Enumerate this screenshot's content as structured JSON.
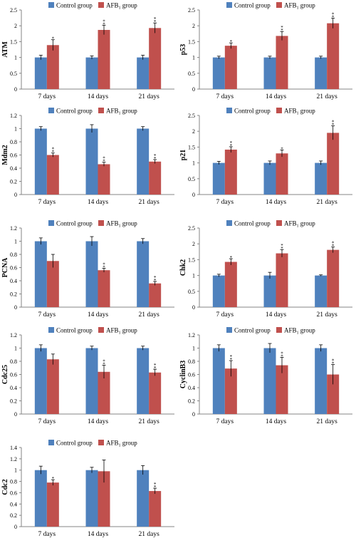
{
  "legend": {
    "control_label": "Control group",
    "afb_prefix": "AFB",
    "afb_sub": "1",
    "afb_suffix": "group"
  },
  "colors": {
    "control": "#4F81BD",
    "afb": "#C0504D",
    "axis": "#868686",
    "text": "#000000"
  },
  "chart_data": [
    {
      "type": "bar",
      "ylabel": "ATM",
      "categories": [
        "7 days",
        "14 days",
        "21 days"
      ],
      "ylim": [
        0,
        2.5
      ],
      "yticks": [
        0,
        0.5,
        1,
        1.5,
        2,
        2.5
      ],
      "series": [
        {
          "name": "Control group",
          "values": [
            1.0,
            1.0,
            1.0
          ],
          "errors": [
            0.07,
            0.05,
            0.07
          ],
          "stars": [
            "",
            "",
            ""
          ]
        },
        {
          "name": "AFB1 group",
          "values": [
            1.39,
            1.87,
            1.93
          ],
          "errors": [
            0.17,
            0.15,
            0.16
          ],
          "stars": [
            "*",
            "**",
            "**"
          ]
        }
      ]
    },
    {
      "type": "bar",
      "ylabel": "p53",
      "categories": [
        "7 days",
        "14 days",
        "21 days"
      ],
      "ylim": [
        0,
        2.5
      ],
      "yticks": [
        0,
        0.5,
        1,
        1.5,
        2,
        2.5
      ],
      "series": [
        {
          "name": "Control group",
          "values": [
            1.0,
            1.0,
            1.0
          ],
          "errors": [
            0.04,
            0.04,
            0.04
          ],
          "stars": [
            "",
            "",
            ""
          ]
        },
        {
          "name": "AFB1 group",
          "values": [
            1.37,
            1.68,
            2.08
          ],
          "errors": [
            0.09,
            0.14,
            0.16
          ],
          "stars": [
            "*",
            "**",
            "**"
          ]
        }
      ]
    },
    {
      "type": "bar",
      "ylabel": "Mdm2",
      "categories": [
        "7 days",
        "14 days",
        "21 days"
      ],
      "ylim": [
        0,
        1.2
      ],
      "yticks": [
        0,
        0.2,
        0.4,
        0.6,
        0.8,
        1,
        1.2
      ],
      "series": [
        {
          "name": "Control group",
          "values": [
            1.0,
            1.0,
            1.0
          ],
          "errors": [
            0.03,
            0.06,
            0.03
          ],
          "stars": [
            "",
            "",
            ""
          ]
        },
        {
          "name": "AFB1 group",
          "values": [
            0.6,
            0.46,
            0.5
          ],
          "errors": [
            0.03,
            0.03,
            0.03
          ],
          "stars": [
            "**",
            "**",
            "**"
          ]
        }
      ]
    },
    {
      "type": "bar",
      "ylabel": "p21",
      "categories": [
        "7 days",
        "14 days",
        "21 days"
      ],
      "ylim": [
        0,
        2.5
      ],
      "yticks": [
        0,
        0.5,
        1,
        1.5,
        2,
        2.5
      ],
      "series": [
        {
          "name": "Control group",
          "values": [
            1.0,
            1.0,
            1.0
          ],
          "errors": [
            0.05,
            0.06,
            0.06
          ],
          "stars": [
            "",
            "",
            ""
          ]
        },
        {
          "name": "AFB1 group",
          "values": [
            1.42,
            1.3,
            1.95
          ],
          "errors": [
            0.09,
            0.11,
            0.22
          ],
          "stars": [
            "**",
            "*",
            "**"
          ]
        }
      ]
    },
    {
      "type": "bar",
      "ylabel": "PCNA",
      "categories": [
        "7 days",
        "14 days",
        "21 days"
      ],
      "ylim": [
        0,
        1.2
      ],
      "yticks": [
        0,
        0.2,
        0.4,
        0.6,
        0.8,
        1,
        1.2
      ],
      "series": [
        {
          "name": "Control group",
          "values": [
            1.0,
            1.0,
            1.0
          ],
          "errors": [
            0.05,
            0.07,
            0.04
          ],
          "stars": [
            "",
            "",
            ""
          ]
        },
        {
          "name": "AFB1 group",
          "values": [
            0.7,
            0.56,
            0.36
          ],
          "errors": [
            0.1,
            0.03,
            0.03
          ],
          "stars": [
            "",
            "**",
            "**"
          ]
        }
      ]
    },
    {
      "type": "bar",
      "ylabel": "Chk2",
      "categories": [
        "7 days",
        "14 days",
        "21 days"
      ],
      "ylim": [
        0,
        2.5
      ],
      "yticks": [
        0,
        0.5,
        1,
        1.5,
        2,
        2.5
      ],
      "series": [
        {
          "name": "Control group",
          "values": [
            1.0,
            1.0,
            1.0
          ],
          "errors": [
            0.04,
            0.1,
            0.02
          ],
          "stars": [
            "",
            "",
            ""
          ]
        },
        {
          "name": "AFB1 group",
          "values": [
            1.43,
            1.7,
            1.81
          ],
          "errors": [
            0.1,
            0.12,
            0.09
          ],
          "stars": [
            "*",
            "**",
            "**"
          ]
        }
      ]
    },
    {
      "type": "bar",
      "ylabel": "Cdc25",
      "categories": [
        "7 days",
        "14 days",
        "21 days"
      ],
      "ylim": [
        0,
        1.2
      ],
      "yticks": [
        0,
        0.2,
        0.4,
        0.6,
        0.8,
        1,
        1.2
      ],
      "series": [
        {
          "name": "Control group",
          "values": [
            1.0,
            1.0,
            1.0
          ],
          "errors": [
            0.05,
            0.03,
            0.03
          ],
          "stars": [
            "",
            "",
            ""
          ]
        },
        {
          "name": "AFB1 group",
          "values": [
            0.83,
            0.64,
            0.63
          ],
          "errors": [
            0.08,
            0.1,
            0.05
          ],
          "stars": [
            "",
            "**",
            "**"
          ]
        }
      ]
    },
    {
      "type": "bar",
      "ylabel": "CyclinB3",
      "categories": [
        "7 days",
        "14 days",
        "21 days"
      ],
      "ylim": [
        0,
        1.2
      ],
      "yticks": [
        0,
        0.2,
        0.4,
        0.6,
        0.8,
        1,
        1.2
      ],
      "series": [
        {
          "name": "Control group",
          "values": [
            1.0,
            1.0,
            1.0
          ],
          "errors": [
            0.05,
            0.07,
            0.05
          ],
          "stars": [
            "",
            "",
            ""
          ]
        },
        {
          "name": "AFB1 group",
          "values": [
            0.69,
            0.74,
            0.6
          ],
          "errors": [
            0.12,
            0.12,
            0.15
          ],
          "stars": [
            "**",
            "**",
            "**"
          ]
        }
      ]
    },
    {
      "type": "bar",
      "ylabel": "Cdc2",
      "categories": [
        "7 days",
        "14 days",
        "21 days"
      ],
      "ylim": [
        0,
        1.4
      ],
      "yticks": [
        0,
        0.2,
        0.4,
        0.6,
        0.8,
        1,
        1.2,
        1.4
      ],
      "series": [
        {
          "name": "Control group",
          "values": [
            1.0,
            1.0,
            1.0
          ],
          "errors": [
            0.07,
            0.05,
            0.08
          ],
          "stars": [
            "",
            "",
            ""
          ]
        },
        {
          "name": "AFB1 group",
          "values": [
            0.78,
            0.98,
            0.63
          ],
          "errors": [
            0.05,
            0.2,
            0.05
          ],
          "stars": [
            "*",
            "",
            "**"
          ]
        }
      ]
    }
  ]
}
